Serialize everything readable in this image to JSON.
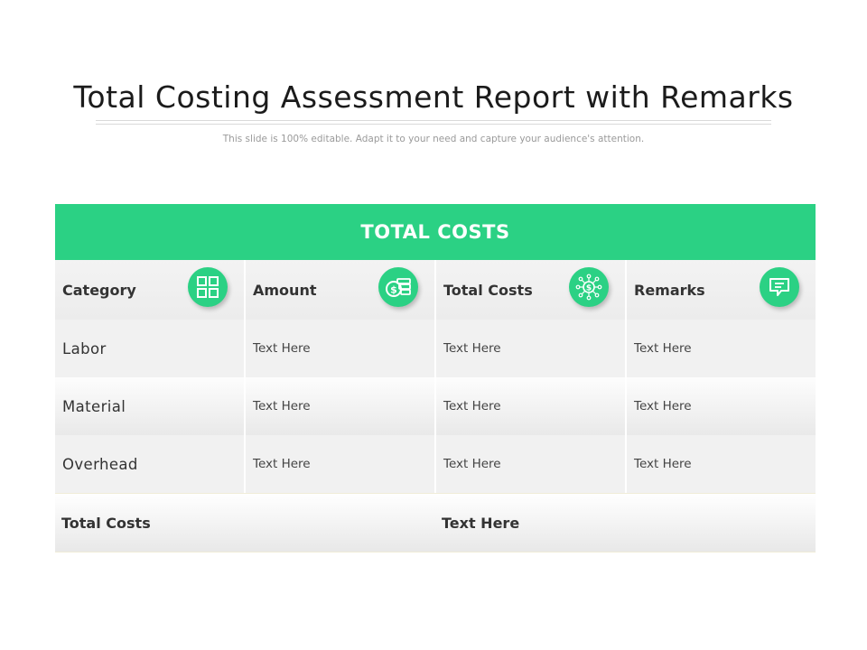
{
  "slide": {
    "title": "Total Costing Assessment Report with Remarks",
    "subtitle": "This slide is 100% editable. Adapt it to your need and capture your audience's attention."
  },
  "table": {
    "header": "TOTAL COSTS",
    "accent_color": "#2bd184",
    "columns": [
      {
        "label": "Category",
        "icon": "grid-icon"
      },
      {
        "label": "Amount",
        "icon": "money-icon"
      },
      {
        "label": "Total Costs",
        "icon": "network-dollar-icon"
      },
      {
        "label": "Remarks",
        "icon": "comment-icon"
      }
    ],
    "rows": [
      {
        "category": "Labor",
        "amount": "Text Here",
        "total": "Text Here",
        "remarks": "Text Here"
      },
      {
        "category": "Material",
        "amount": "Text Here",
        "total": "Text Here",
        "remarks": "Text Here"
      },
      {
        "category": "Overhead",
        "amount": "Text Here",
        "total": "Text Here",
        "remarks": "Text Here"
      }
    ],
    "footer": {
      "label": "Total Costs",
      "value": "Text Here"
    }
  }
}
